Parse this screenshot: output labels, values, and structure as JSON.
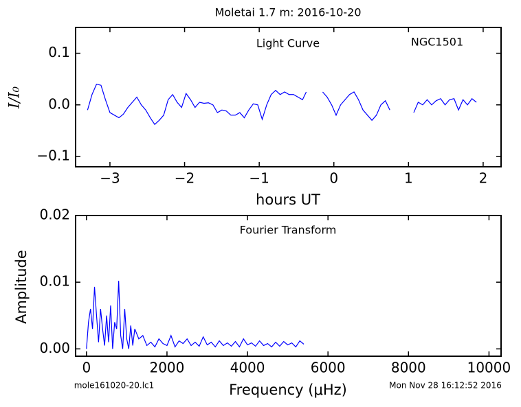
{
  "figure": {
    "title": "Moletai 1.7 m:  2016-10-20",
    "footer_left": "mole161020-20.lc1",
    "footer_right": "Mon Nov 28 16:12:52 2016"
  },
  "chart_data": [
    {
      "type": "line",
      "xlabel": "hours UT",
      "ylabel": "I/I₀",
      "annotations": [
        "Light Curve",
        "NGC1501"
      ],
      "xlim": [
        -3.46,
        2.24
      ],
      "ylim": [
        -0.12,
        0.15
      ],
      "xticks": [
        {
          "value": -3,
          "label": "−3"
        },
        {
          "value": -2,
          "label": "−2"
        },
        {
          "value": -1,
          "label": "−1"
        },
        0,
        1,
        2
      ],
      "yticks": [
        {
          "value": -0.1,
          "label": "−0.1"
        },
        {
          "value": 0,
          "label": "0.0"
        },
        0.1
      ],
      "series": [
        {
          "color": "#0000ff",
          "x": [
            -3.3,
            -3.24,
            -3.18,
            -3.12,
            -3.06,
            -3.0,
            -2.94,
            -2.88,
            -2.82,
            -2.76,
            -2.7,
            -2.64,
            -2.58,
            -2.52,
            -2.46,
            -2.4,
            -2.34,
            -2.28,
            -2.22,
            -2.16,
            -2.1,
            -2.04,
            -1.98,
            -1.92,
            -1.86,
            -1.8,
            -1.74,
            -1.68,
            -1.62,
            -1.56,
            -1.5,
            -1.44,
            -1.38,
            -1.32,
            -1.26,
            -1.2,
            -1.14,
            -1.08,
            -1.02,
            -0.96,
            -0.9,
            -0.84,
            -0.78,
            -0.72,
            -0.66,
            -0.6,
            -0.54,
            -0.48,
            -0.42,
            -0.37,
            -0.26,
            -0.15,
            -0.09,
            -0.03,
            0.03,
            0.09,
            0.15,
            0.21,
            0.27,
            0.33,
            0.39,
            0.45,
            0.51,
            0.57,
            0.63,
            0.69,
            0.75,
            0.9,
            1.07,
            1.13,
            1.19,
            1.25,
            1.31,
            1.37,
            1.43,
            1.49,
            1.55,
            1.61,
            1.67,
            1.73,
            1.79,
            1.85,
            1.91
          ],
          "values": [
            -0.01,
            0.02,
            0.04,
            0.038,
            0.01,
            -0.015,
            -0.02,
            -0.025,
            -0.018,
            -0.005,
            0.005,
            0.015,
            0.0,
            -0.01,
            -0.025,
            -0.038,
            -0.03,
            -0.02,
            0.01,
            0.02,
            0.005,
            -0.005,
            0.022,
            0.01,
            -0.005,
            0.005,
            0.003,
            0.004,
            0.0,
            -0.015,
            -0.01,
            -0.012,
            -0.02,
            -0.02,
            -0.015,
            -0.025,
            -0.01,
            0.002,
            0.0,
            -0.028,
            0.0,
            0.02,
            0.028,
            0.02,
            0.025,
            0.02,
            0.02,
            0.015,
            0.01,
            0.025,
            null,
            0.025,
            0.015,
            0.0,
            -0.02,
            0.0,
            0.01,
            0.02,
            0.025,
            0.01,
            -0.01,
            -0.02,
            -0.03,
            -0.02,
            0.0,
            0.008,
            -0.01,
            null,
            -0.015,
            0.005,
            0.0,
            0.01,
            0.0,
            0.008,
            0.012,
            0.0,
            0.01,
            0.012,
            -0.01,
            0.01,
            0.0,
            0.012,
            0.005
          ]
        }
      ]
    },
    {
      "type": "line",
      "xlabel": "Frequency (μHz)",
      "ylabel": "Amplitude",
      "annotations": [
        "Fourier Transform"
      ],
      "xlim": [
        -270,
        10300
      ],
      "ylim": [
        -0.0011,
        0.02
      ],
      "xticks": [
        0,
        2000,
        4000,
        6000,
        8000,
        10000
      ],
      "yticks": [
        {
          "value": 0,
          "label": "0.00"
        },
        0.01,
        0.02
      ],
      "series": [
        {
          "color": "#0000ff",
          "x": [
            0,
            50,
            100,
            150,
            200,
            250,
            300,
            350,
            400,
            450,
            500,
            550,
            600,
            650,
            700,
            750,
            800,
            850,
            900,
            950,
            1000,
            1050,
            1100,
            1150,
            1200,
            1300,
            1400,
            1500,
            1600,
            1700,
            1800,
            1900,
            2000,
            2100,
            2200,
            2300,
            2400,
            2500,
            2600,
            2700,
            2800,
            2900,
            3000,
            3100,
            3200,
            3300,
            3400,
            3500,
            3600,
            3700,
            3800,
            3900,
            4000,
            4100,
            4200,
            4300,
            4400,
            4500,
            4600,
            4700,
            4800,
            4900,
            5000,
            5100,
            5200,
            5300,
            5400
          ],
          "values": [
            0.0,
            0.004,
            0.006,
            0.003,
            0.0093,
            0.005,
            0.001,
            0.006,
            0.003,
            0.0005,
            0.005,
            0.001,
            0.0065,
            0.0,
            0.004,
            0.003,
            0.0102,
            0.002,
            0.0,
            0.006,
            0.0015,
            0.0,
            0.0035,
            0.0005,
            0.003,
            0.0015,
            0.002,
            0.0005,
            0.001,
            0.0003,
            0.0015,
            0.0008,
            0.0005,
            0.002,
            0.0003,
            0.0012,
            0.0008,
            0.0015,
            0.0005,
            0.001,
            0.0004,
            0.0018,
            0.0006,
            0.001,
            0.0003,
            0.0012,
            0.0005,
            0.0009,
            0.0004,
            0.0011,
            0.0003,
            0.0015,
            0.0006,
            0.0009,
            0.0004,
            0.0012,
            0.0005,
            0.0008,
            0.0003,
            0.001,
            0.0004,
            0.0011,
            0.0006,
            0.0009,
            0.0003,
            0.0012,
            0.0007
          ]
        }
      ]
    }
  ]
}
